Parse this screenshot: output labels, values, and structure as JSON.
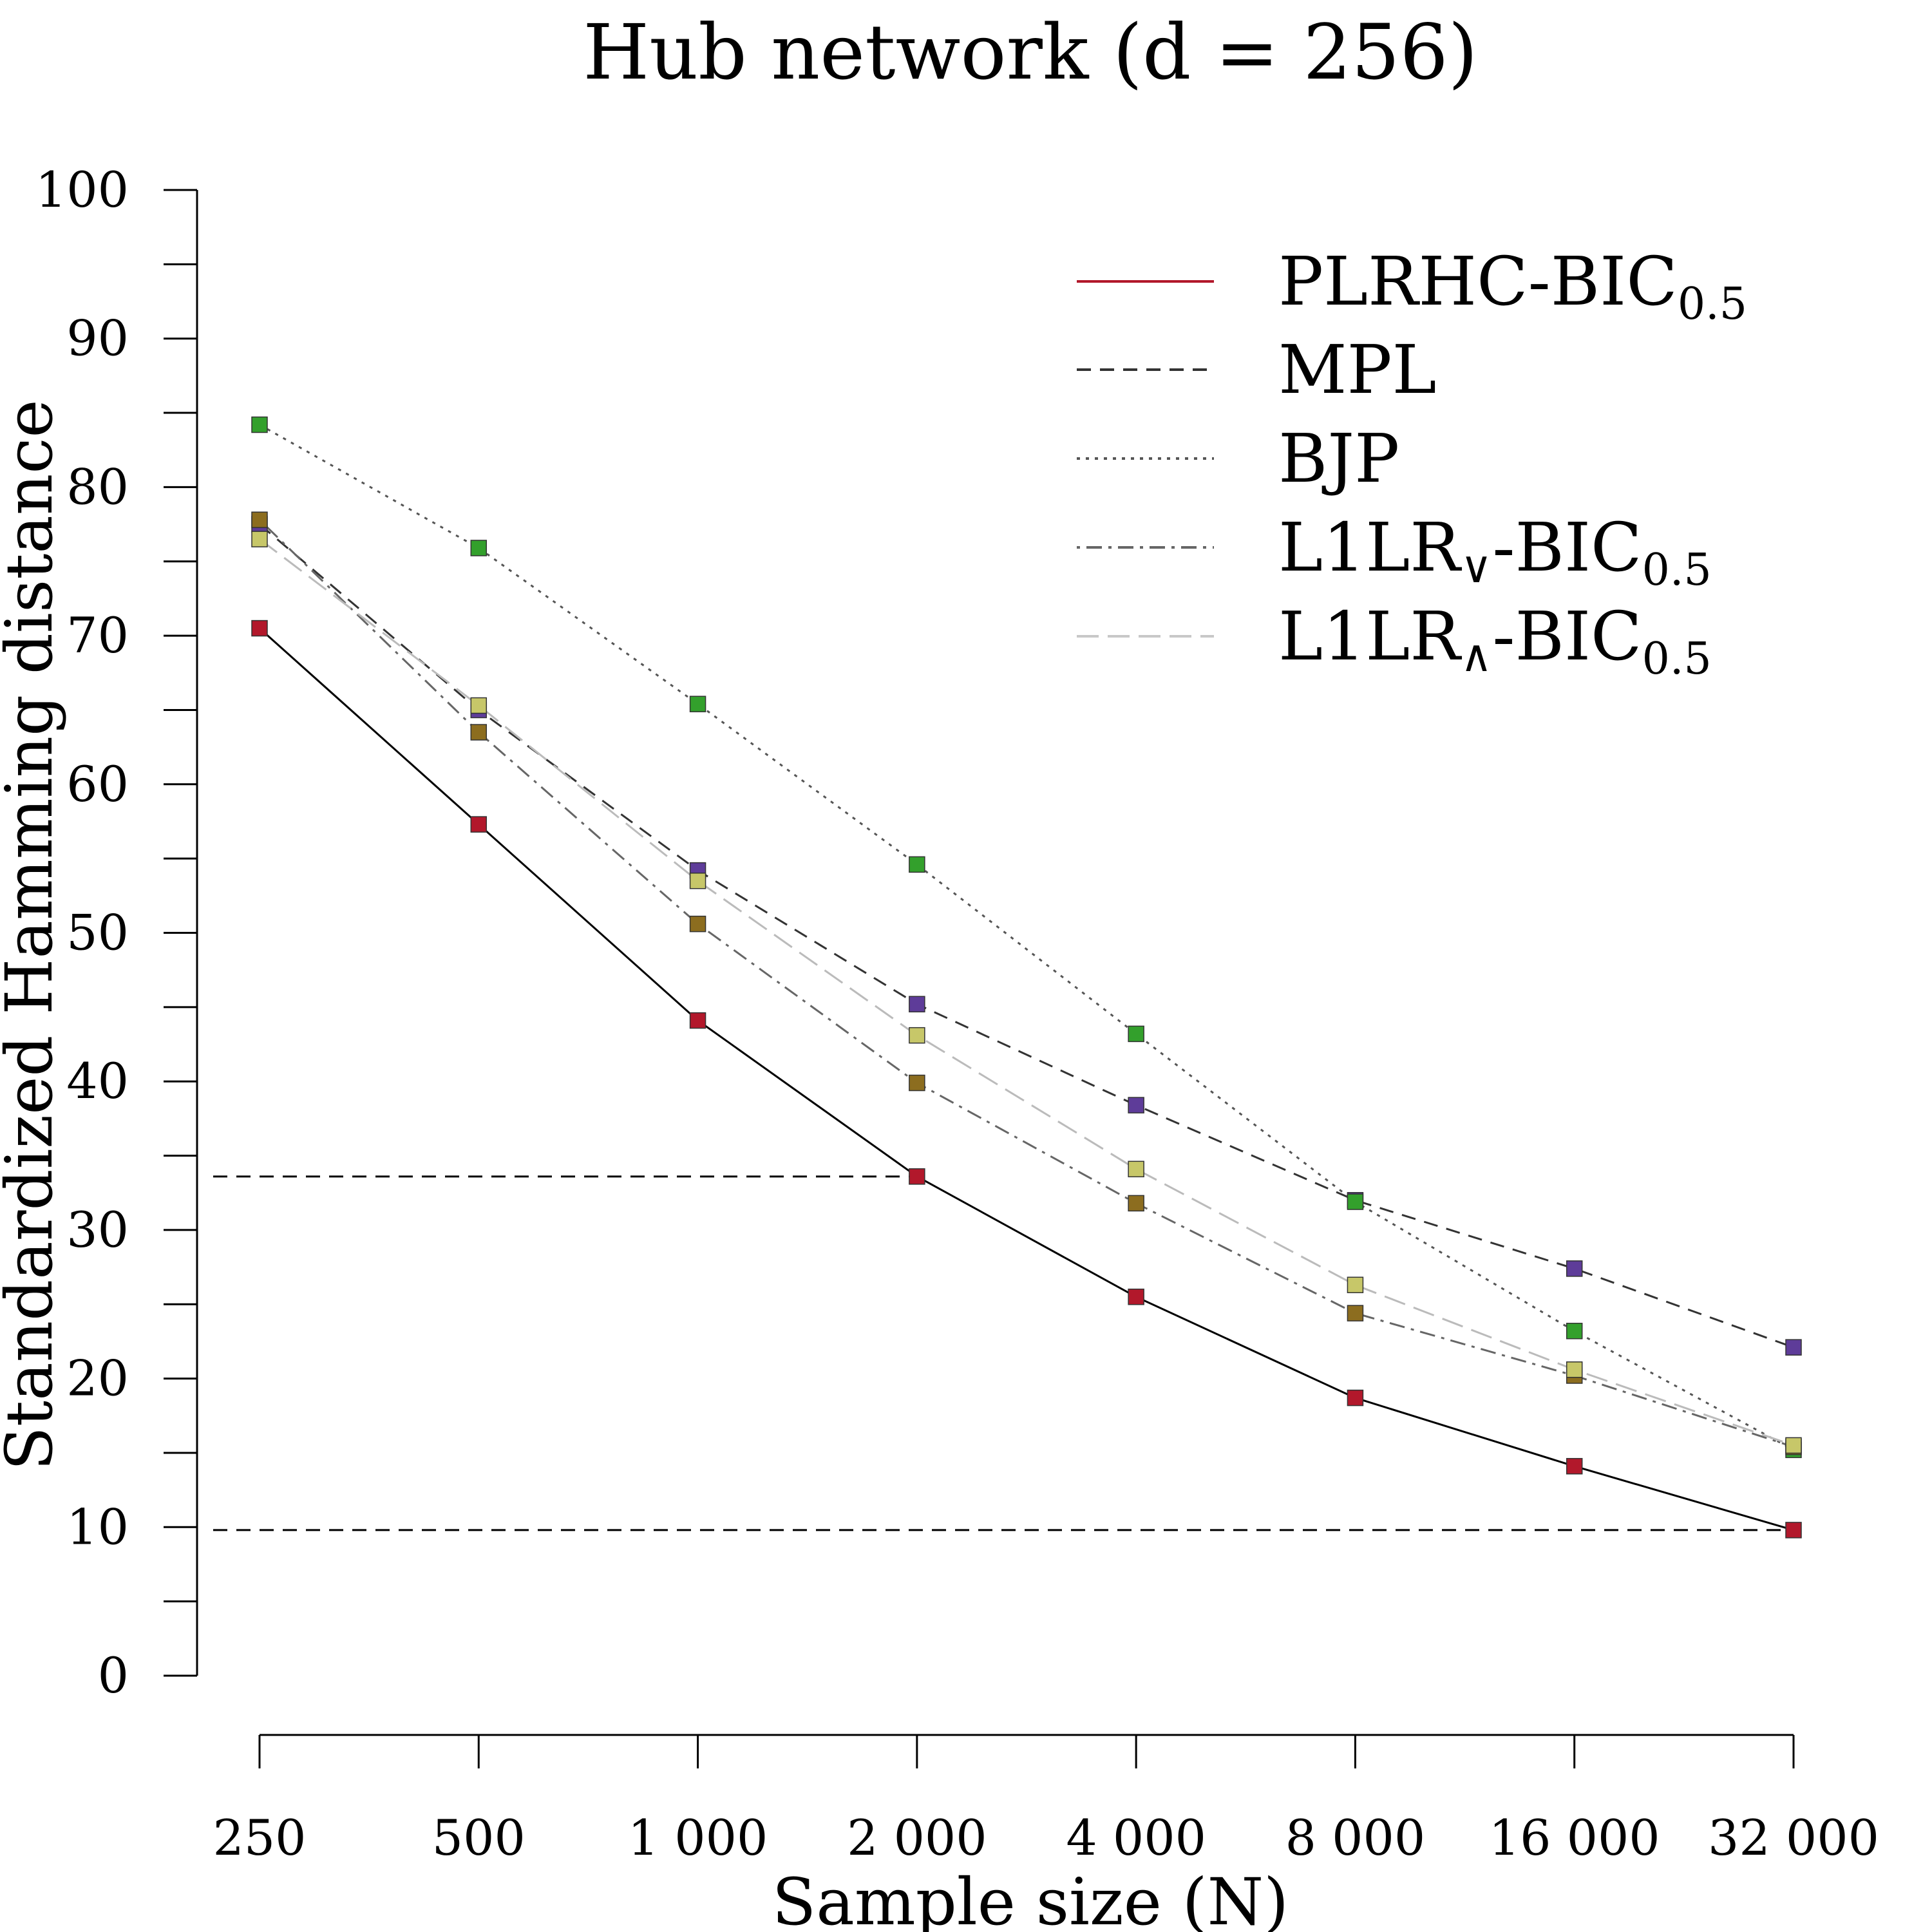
{
  "chart_data": {
    "type": "line",
    "title": "Hub network (d = 256)",
    "xlabel": "Sample size (N)",
    "ylabel": "Standardized Hamming distance",
    "x_scale": "log2",
    "x": [
      250,
      500,
      1000,
      2000,
      4000,
      8000,
      16000,
      32000
    ],
    "x_tick_labels": [
      "250",
      "500",
      "1 000",
      "2 000",
      "4 000",
      "8 000",
      "16 000",
      "32 000"
    ],
    "ylim": [
      0,
      100
    ],
    "y_ticks": [
      0,
      10,
      20,
      30,
      40,
      50,
      60,
      70,
      80,
      90,
      100
    ],
    "y_tick_labels": [
      "0",
      "10",
      "20",
      "30",
      "40",
      "50",
      "60",
      "70",
      "80",
      "90",
      "100"
    ],
    "legend_position": "top-right",
    "grid": false,
    "reference_lines": [
      {
        "y": 33.6,
        "x_end": 2000,
        "style": "dashed"
      },
      {
        "y": 9.8,
        "x_end": 32000,
        "style": "dashed"
      }
    ],
    "series": [
      {
        "name": "PLRHC-BIC",
        "name_subscript": "0.5",
        "line_style": "solid",
        "line_color": "#000000",
        "legend_line_color": "#b2182b",
        "marker_color": "#b2182b",
        "values": [
          70.5,
          57.3,
          44.1,
          33.6,
          25.5,
          18.7,
          14.1,
          9.8
        ]
      },
      {
        "name": "MPL",
        "line_style": "dashed",
        "line_color": "#333333",
        "legend_line_color": "#333333",
        "marker_color": "#5e3c99",
        "values": [
          77.5,
          65.0,
          54.2,
          45.2,
          38.4,
          32.0,
          27.4,
          22.1
        ]
      },
      {
        "name": "BJP",
        "line_style": "dotted",
        "line_color": "#555555",
        "legend_line_color": "#555555",
        "marker_color": "#33a02c",
        "values": [
          84.2,
          75.9,
          65.4,
          54.6,
          43.2,
          31.9,
          23.2,
          15.2
        ]
      },
      {
        "name": "L1LR",
        "name_op": "∨",
        "name_tail": "-BIC",
        "name_subscript": "0.5",
        "line_style": "dashdot",
        "line_color": "#666666",
        "legend_line_color": "#666666",
        "marker_color": "#8c6d1f",
        "values": [
          77.8,
          63.5,
          50.6,
          39.9,
          31.8,
          24.4,
          20.2,
          15.4
        ]
      },
      {
        "name": "L1LR",
        "name_op": "∧",
        "name_tail": "-BIC",
        "name_subscript": "0.5",
        "line_style": "longdash",
        "line_color": "#bbbbbb",
        "legend_line_color": "#c8c8c8",
        "marker_color": "#c7c769",
        "values": [
          76.5,
          65.3,
          53.5,
          43.1,
          34.1,
          26.3,
          20.6,
          15.5
        ]
      }
    ]
  }
}
